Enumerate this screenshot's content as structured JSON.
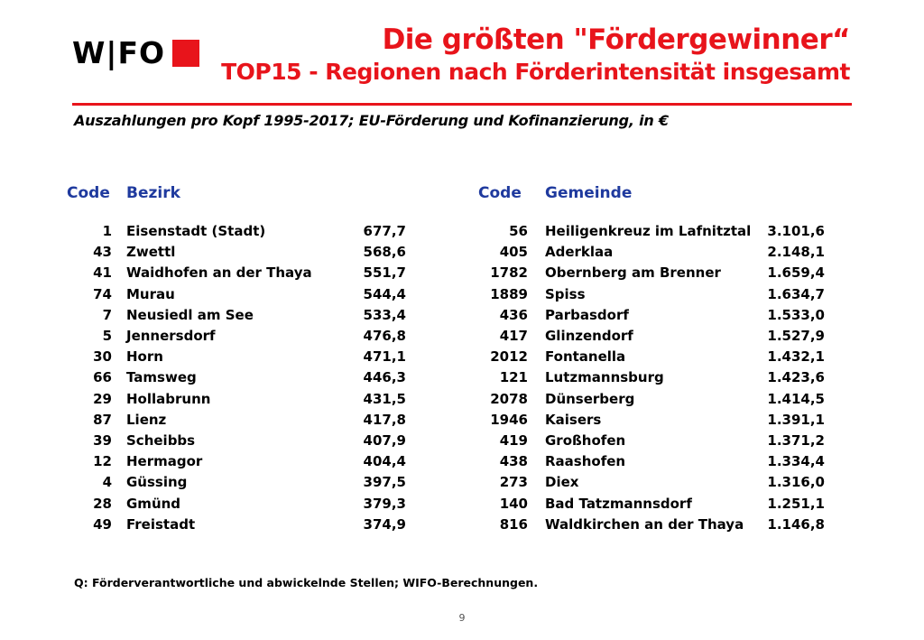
{
  "logo": {
    "text": "W|FO",
    "accent": "#e8141b"
  },
  "header": {
    "title": "Die größten \"Fördergewinner“",
    "subtitle": "TOP15 - Regionen nach Förderintensität insgesamt"
  },
  "caption": "Auszahlungen pro Kopf 1995-2017; EU-Förderung und Kofinanzierung, in €",
  "left_table": {
    "code_header": "Code",
    "name_header": "Bezirk",
    "rows": [
      {
        "code": "1",
        "name": "Eisenstadt (Stadt)",
        "value": "677,7"
      },
      {
        "code": "43",
        "name": "Zwettl",
        "value": "568,6"
      },
      {
        "code": "41",
        "name": "Waidhofen an der Thaya",
        "value": "551,7"
      },
      {
        "code": "74",
        "name": "Murau",
        "value": "544,4"
      },
      {
        "code": "7",
        "name": "Neusiedl am See",
        "value": "533,4"
      },
      {
        "code": "5",
        "name": "Jennersdorf",
        "value": "476,8"
      },
      {
        "code": "30",
        "name": "Horn",
        "value": "471,1"
      },
      {
        "code": "66",
        "name": "Tamsweg",
        "value": "446,3"
      },
      {
        "code": "29",
        "name": "Hollabrunn",
        "value": "431,5"
      },
      {
        "code": "87",
        "name": "Lienz",
        "value": "417,8"
      },
      {
        "code": "39",
        "name": "Scheibbs",
        "value": "407,9"
      },
      {
        "code": "12",
        "name": "Hermagor",
        "value": "404,4"
      },
      {
        "code": "4",
        "name": "Güssing",
        "value": "397,5"
      },
      {
        "code": "28",
        "name": "Gmünd",
        "value": "379,3"
      },
      {
        "code": "49",
        "name": "Freistadt",
        "value": "374,9"
      }
    ]
  },
  "right_table": {
    "code_header": "Code",
    "name_header": "Gemeinde",
    "rows": [
      {
        "code": "56",
        "name": "Heiligenkreuz im Lafnitztal",
        "value": "3.101,6"
      },
      {
        "code": "405",
        "name": "Aderklaa",
        "value": "2.148,1"
      },
      {
        "code": "1782",
        "name": "Obernberg am Brenner",
        "value": "1.659,4"
      },
      {
        "code": "1889",
        "name": "Spiss",
        "value": "1.634,7"
      },
      {
        "code": "436",
        "name": "Parbasdorf",
        "value": "1.533,0"
      },
      {
        "code": "417",
        "name": "Glinzendorf",
        "value": "1.527,9"
      },
      {
        "code": "2012",
        "name": "Fontanella",
        "value": "1.432,1"
      },
      {
        "code": "121",
        "name": "Lutzmannsburg",
        "value": "1.423,6"
      },
      {
        "code": "2078",
        "name": "Dünserberg",
        "value": "1.414,5"
      },
      {
        "code": "1946",
        "name": "Kaisers",
        "value": "1.391,1"
      },
      {
        "code": "419",
        "name": "Großhofen",
        "value": "1.371,2"
      },
      {
        "code": "438",
        "name": "Raashofen",
        "value": "1.334,4"
      },
      {
        "code": "273",
        "name": "Diex",
        "value": "1.316,0"
      },
      {
        "code": "140",
        "name": "Bad Tatzmannsdorf",
        "value": "1.251,1"
      },
      {
        "code": "816",
        "name": "Waldkirchen an der Thaya",
        "value": "1.146,8"
      }
    ]
  },
  "source": "Q: Förderverantwortliche und abwickelnde Stellen; WIFO-Berechnungen.",
  "page_number": "9"
}
